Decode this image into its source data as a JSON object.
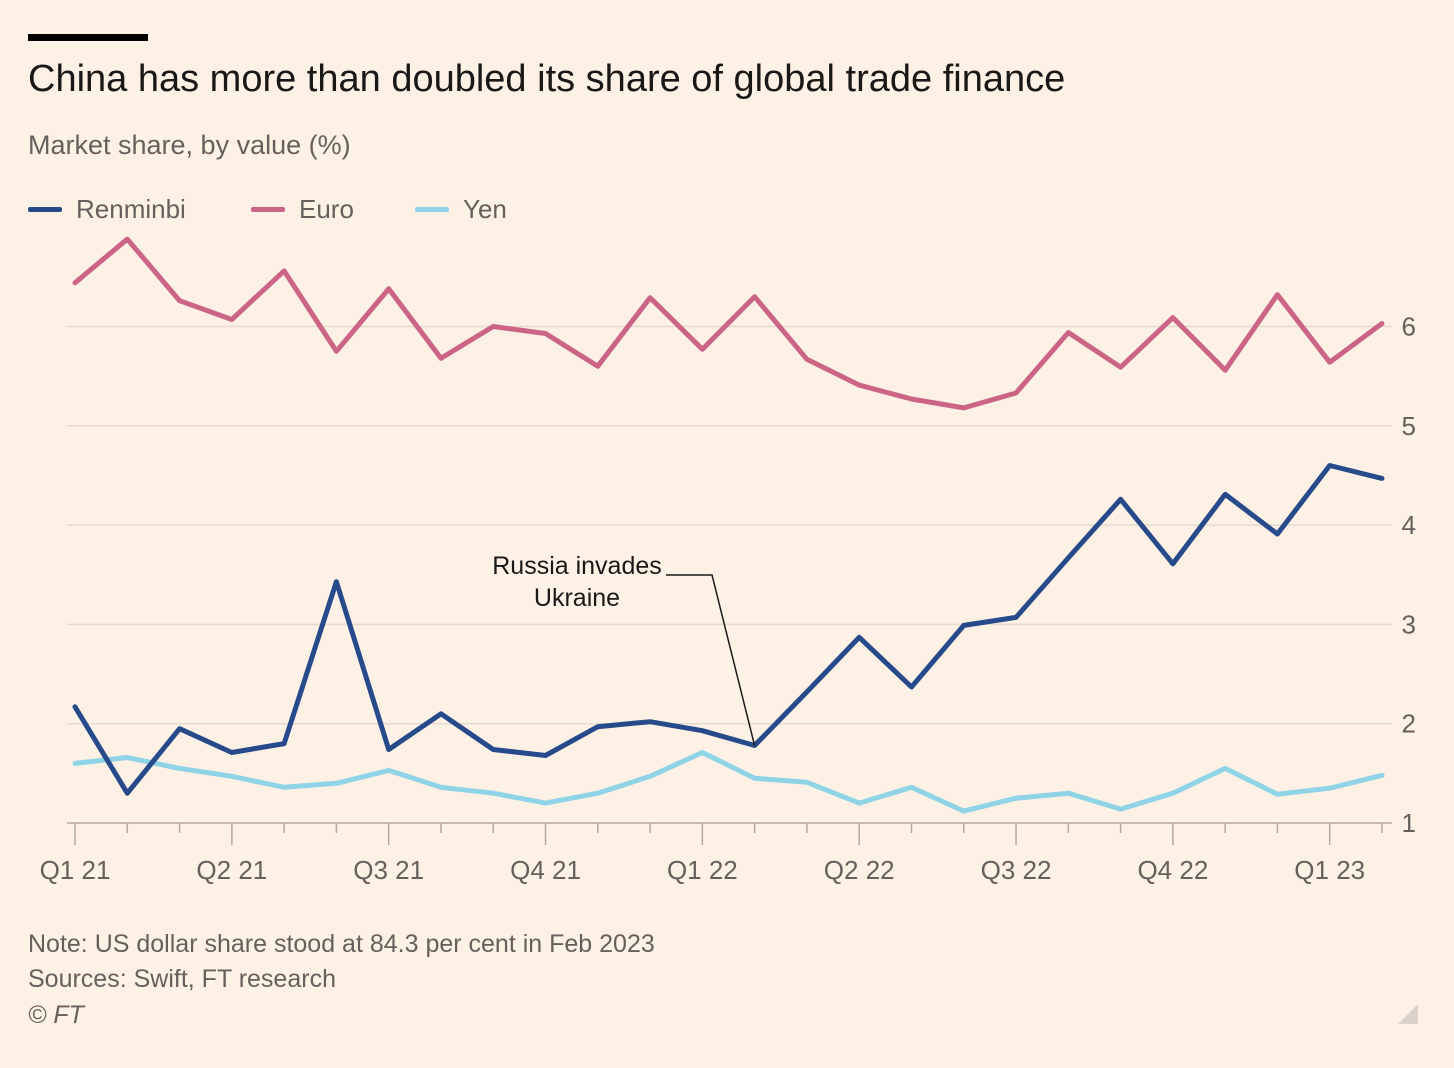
{
  "header": {
    "title": "China has more than doubled its share of global trade finance",
    "subtitle": "Market share, by value (%)"
  },
  "legend": [
    {
      "label": "Renminbi",
      "color": "#264a8a"
    },
    {
      "label": "Euro",
      "color": "#cc6585"
    },
    {
      "label": "Yen",
      "color": "#8fd3e6"
    }
  ],
  "footer": {
    "note": "Note: US dollar share stood at 84.3 per cent in Feb 2023",
    "source": "Sources: Swift, FT research",
    "copyright": "© FT"
  },
  "chart_data": {
    "type": "line",
    "title": "China has more than doubled its share of global trade finance",
    "subtitle": "Market share, by value (%)",
    "x_tick_labels": [
      "Q1 21",
      "Q2 21",
      "Q3 21",
      "Q4 21",
      "Q1 22",
      "Q2 22",
      "Q3 22",
      "Q4 22",
      "Q1 23"
    ],
    "x": [
      "Jan 2021",
      "Feb 2021",
      "Mar 2021",
      "Apr 2021",
      "May 2021",
      "Jun 2021",
      "Jul 2021",
      "Aug 2021",
      "Sep 2021",
      "Oct 2021",
      "Nov 2021",
      "Dec 2021",
      "Jan 2022",
      "Feb 2022",
      "Mar 2022",
      "Apr 2022",
      "May 2022",
      "Jun 2022",
      "Jul 2022",
      "Aug 2022",
      "Sep 2022",
      "Oct 2022",
      "Nov 2022",
      "Dec 2022",
      "Jan 2023",
      "Feb 2023"
    ],
    "ylim": [
      1,
      7
    ],
    "yticks": [
      1,
      2,
      3,
      4,
      5,
      6
    ],
    "y_axis_side": "right",
    "grid": true,
    "legend_position": "top-left",
    "series": [
      {
        "name": "Renminbi",
        "color": "#264a8a",
        "values": [
          2.17,
          1.3,
          1.95,
          1.71,
          1.8,
          3.43,
          1.74,
          2.1,
          1.74,
          1.68,
          1.97,
          2.02,
          1.93,
          1.78,
          2.32,
          2.87,
          2.37,
          2.99,
          3.07,
          3.67,
          4.26,
          3.61,
          4.31,
          3.91,
          4.6,
          4.47
        ]
      },
      {
        "name": "Euro",
        "color": "#cc6585",
        "values": [
          6.44,
          6.88,
          6.26,
          6.07,
          6.56,
          5.75,
          6.38,
          5.68,
          6.0,
          5.93,
          5.6,
          6.29,
          5.77,
          6.3,
          5.67,
          5.41,
          5.27,
          5.18,
          5.33,
          5.94,
          5.59,
          6.09,
          5.56,
          6.32,
          5.64,
          6.03
        ]
      },
      {
        "name": "Yen",
        "color": "#8fd3e6",
        "values": [
          1.6,
          1.66,
          1.55,
          1.47,
          1.36,
          1.4,
          1.53,
          1.36,
          1.3,
          1.2,
          1.3,
          1.47,
          1.71,
          1.45,
          1.41,
          1.2,
          1.36,
          1.12,
          1.25,
          1.3,
          1.14,
          1.3,
          1.55,
          1.29,
          1.35,
          1.48
        ]
      }
    ],
    "annotations": [
      {
        "text_lines": [
          "Russia invades",
          "Ukraine"
        ],
        "x": "Feb 2022",
        "y": 1.78
      }
    ]
  }
}
